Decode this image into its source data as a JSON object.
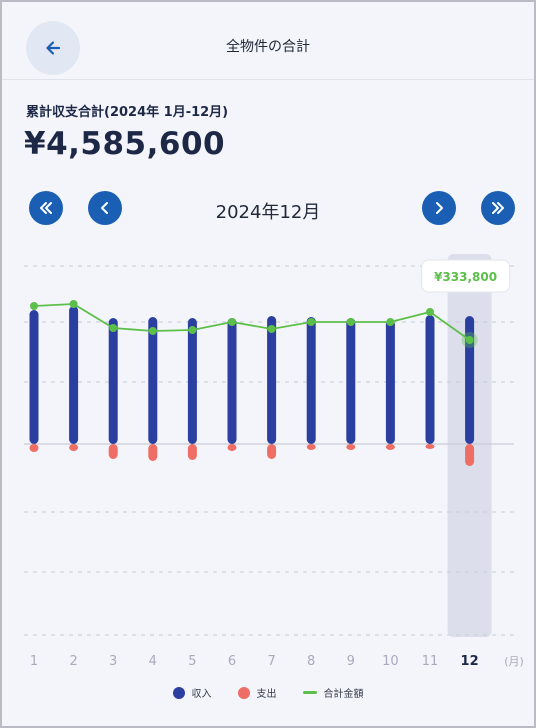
{
  "header": {
    "title": "全物件の合計",
    "back_icon": "arrow-left-icon"
  },
  "summary": {
    "label": "累計収支合計(2024年 1月-12月)",
    "value": "¥4,585,600"
  },
  "period": {
    "label": "2024年12月"
  },
  "nav": {
    "first_icon": "double-chevron-left-icon",
    "prev_icon": "chevron-left-icon",
    "next_icon": "chevron-right-icon",
    "last_icon": "double-chevron-right-icon"
  },
  "colors": {
    "income": "#2a3fa0",
    "expense": "#ee6e66",
    "total": "#5cbf4a",
    "accent": "#1a5fb4",
    "highlight": "#dcdeec"
  },
  "chart_data": {
    "type": "bar",
    "categories": [
      "1",
      "2",
      "3",
      "4",
      "5",
      "6",
      "7",
      "8",
      "9",
      "10",
      "11",
      "12"
    ],
    "x_unit": "(月)",
    "selected_index": 11,
    "series": [
      {
        "name": "収入",
        "values": [
          134,
          138,
          126,
          127,
          126,
          126,
          128,
          127,
          126,
          124,
          129,
          128
        ]
      },
      {
        "name": "支出",
        "values": [
          -8,
          -7,
          -15,
          -17,
          -16,
          -7,
          -15,
          -6,
          -6,
          -6,
          -5,
          -22
        ]
      },
      {
        "name": "合計金額",
        "values": [
          138,
          140,
          116,
          113,
          114,
          122,
          115,
          122,
          122,
          122,
          132,
          104
        ]
      }
    ],
    "tooltip": {
      "label": "¥333,800"
    }
  }
}
